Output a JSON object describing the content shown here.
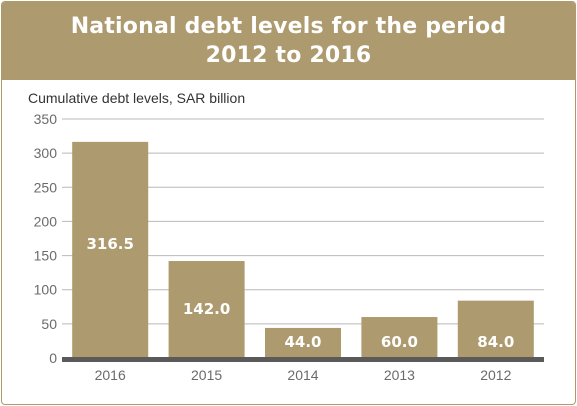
{
  "header": {
    "title_line1": "National debt levels for the period",
    "title_line2": "2012 to 2016"
  },
  "colors": {
    "bar": "#ad9a6e",
    "header_background": "#ad9a6e",
    "baseline": "#5a5a5a",
    "grid": "#b9b9b9",
    "tick_text": "#6b6b6b"
  },
  "chart_data": {
    "type": "bar",
    "title": "National debt levels for the period 2012 to 2016",
    "ylabel": "Cumulative debt levels, SAR billion",
    "xlabel": "",
    "categories": [
      "2016",
      "2015",
      "2014",
      "2013",
      "2012"
    ],
    "values": [
      316.5,
      142.0,
      44.0,
      60.0,
      84.0
    ],
    "data_labels": [
      "316.5",
      "142.0",
      "44.0",
      "60.0",
      "84.0"
    ],
    "ylim": [
      0,
      350
    ],
    "yticks": [
      0,
      50,
      100,
      150,
      200,
      250,
      300,
      350
    ],
    "grid": true,
    "legend": "none"
  }
}
